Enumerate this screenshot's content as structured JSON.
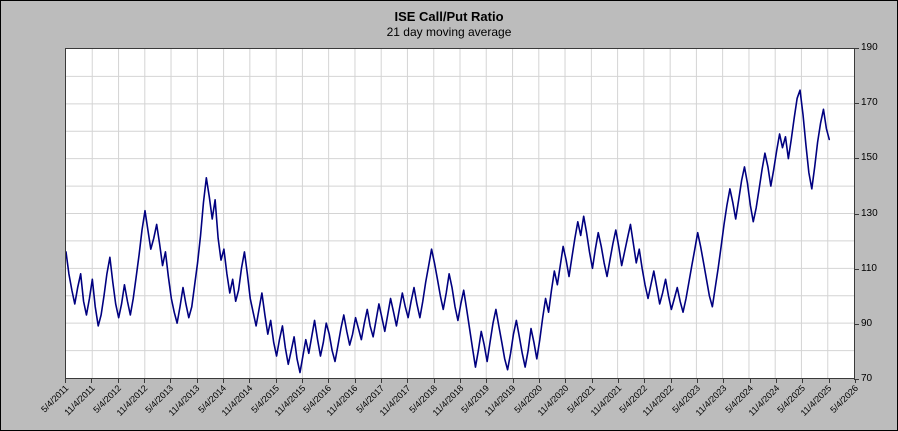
{
  "chart_data": {
    "type": "line",
    "title": "ISE  Call/Put Ratio",
    "subtitle": "21 day moving average",
    "xlabel": "",
    "ylabel": "",
    "ylim": [
      70,
      190
    ],
    "y_ticks": [
      70,
      90,
      110,
      130,
      150,
      170,
      190
    ],
    "y_grid_step": 10,
    "grid": true,
    "legend_position": "none",
    "line_color": "#000080",
    "grid_color": "#d4d4d4",
    "plot_background": "#ffffff",
    "window_background": "#bcbcbc",
    "x_axis_range": [
      2011.34,
      2026.34
    ],
    "x_tick_labels": [
      "5/4/2011",
      "11/4/2011",
      "5/4/2012",
      "11/4/2012",
      "5/4/2013",
      "11/4/2013",
      "5/4/2014",
      "11/4/2014",
      "5/4/2015",
      "11/4/2015",
      "5/4/2016",
      "11/4/2016",
      "5/4/2017",
      "11/4/2017",
      "5/4/2018",
      "11/4/2018",
      "5/4/2019",
      "11/4/2019",
      "5/4/2020",
      "11/4/2020",
      "5/4/2021",
      "11/4/2021",
      "5/4/2022",
      "11/4/2022",
      "5/4/2023",
      "11/4/2023",
      "5/4/2024",
      "11/4/2024",
      "5/4/2025",
      "11/4/2025",
      "5/4/2026"
    ],
    "series": [
      {
        "name": "ISE Call/Put Ratio 21 day moving average",
        "x_start": 2011.34,
        "x_end": 2025.87,
        "values": [
          116,
          108,
          102,
          97,
          103,
          108,
          98,
          93,
          99,
          106,
          96,
          89,
          93,
          100,
          108,
          114,
          105,
          97,
          92,
          97,
          104,
          98,
          93,
          99,
          107,
          115,
          124,
          131,
          124,
          117,
          121,
          126,
          119,
          111,
          116,
          107,
          99,
          94,
          90,
          96,
          103,
          97,
          92,
          96,
          104,
          112,
          122,
          134,
          143,
          136,
          128,
          135,
          121,
          113,
          117,
          108,
          101,
          106,
          98,
          102,
          110,
          116,
          108,
          99,
          94,
          89,
          95,
          101,
          93,
          86,
          91,
          83,
          78,
          84,
          89,
          81,
          75,
          80,
          85,
          77,
          72,
          78,
          84,
          79,
          85,
          91,
          84,
          78,
          83,
          90,
          86,
          80,
          76,
          82,
          88,
          93,
          87,
          82,
          86,
          92,
          88,
          84,
          90,
          95,
          89,
          85,
          91,
          97,
          92,
          87,
          93,
          99,
          94,
          89,
          95,
          101,
          96,
          92,
          98,
          103,
          97,
          92,
          98,
          105,
          111,
          117,
          112,
          106,
          100,
          95,
          101,
          108,
          103,
          96,
          91,
          97,
          102,
          95,
          88,
          81,
          74,
          80,
          87,
          82,
          76,
          83,
          90,
          95,
          89,
          83,
          77,
          73,
          79,
          86,
          91,
          85,
          79,
          74,
          80,
          88,
          83,
          77,
          84,
          92,
          99,
          94,
          102,
          109,
          104,
          111,
          118,
          113,
          107,
          114,
          121,
          127,
          122,
          129,
          123,
          116,
          110,
          117,
          123,
          118,
          112,
          107,
          113,
          119,
          124,
          118,
          111,
          116,
          121,
          126,
          119,
          112,
          117,
          110,
          104,
          99,
          104,
          109,
          103,
          97,
          101,
          106,
          100,
          95,
          99,
          103,
          98,
          94,
          99,
          105,
          111,
          117,
          123,
          118,
          112,
          106,
          100,
          96,
          103,
          110,
          118,
          126,
          133,
          139,
          134,
          128,
          135,
          142,
          147,
          141,
          133,
          127,
          132,
          139,
          146,
          152,
          147,
          140,
          146,
          153,
          159,
          154,
          158,
          150,
          157,
          165,
          172,
          175,
          166,
          155,
          145,
          139,
          147,
          156,
          163,
          168,
          161,
          157
        ]
      }
    ]
  }
}
